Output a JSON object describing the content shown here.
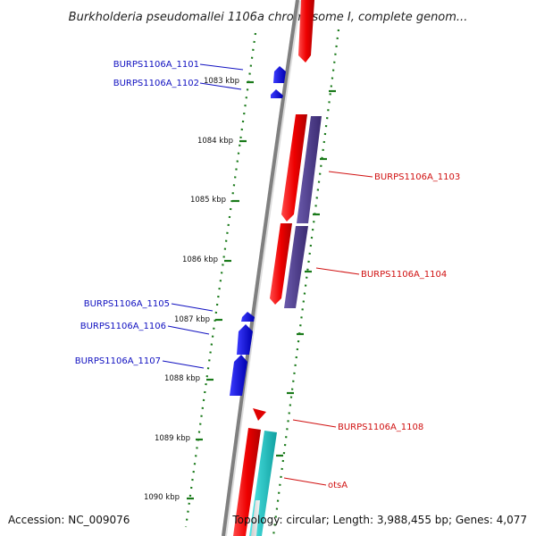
{
  "title": "Burkholderia pseudomallei 1106a chromosome I, complete genom...",
  "footer": {
    "accession": "Accession: NC_009076",
    "summary": "Topology: circular; Length: 3,988,455 bp; Genes: 4,077"
  },
  "ticks": [
    "1083 kbp",
    "1084 kbp",
    "1085 kbp",
    "1086 kbp",
    "1087 kbp",
    "1088 kbp",
    "1089 kbp",
    "1090 kbp"
  ],
  "genes_left": [
    {
      "name": "BURPS1106A_1101"
    },
    {
      "name": "BURPS1106A_1102"
    },
    {
      "name": "BURPS1106A_1105"
    },
    {
      "name": "BURPS1106A_1106"
    },
    {
      "name": "BURPS1106A_1107"
    }
  ],
  "genes_right": [
    {
      "name": "BURPS1106A_1103"
    },
    {
      "name": "BURPS1106A_1104"
    },
    {
      "name": "BURPS1106A_1108"
    },
    {
      "name": "otsA"
    }
  ],
  "colors": {
    "backbone": "#888888",
    "forward_strand": "#e00000",
    "reverse_strand": "#0000e0",
    "cog_purple": "#4a3a8c",
    "cog_teal": "#20c0c0",
    "gc_dots": "#1a7a1a",
    "left_label": "#1010c0",
    "right_label": "#d01010"
  }
}
